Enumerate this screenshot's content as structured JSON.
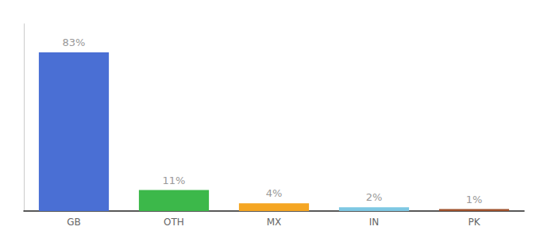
{
  "chart_data": {
    "type": "bar",
    "categories": [
      "GB",
      "OTH",
      "MX",
      "IN",
      "PK"
    ],
    "values": [
      83,
      11,
      4,
      2,
      1
    ],
    "value_labels": [
      "83%",
      "11%",
      "4%",
      "2%",
      "1%"
    ],
    "data_labels": true,
    "colors": [
      "#4A6FD4",
      "#3CB84A",
      "#F5A623",
      "#7EC8E3",
      "#A0522D"
    ],
    "ylim": [
      0,
      98
    ],
    "tick_labels": "x",
    "grid": false
  }
}
